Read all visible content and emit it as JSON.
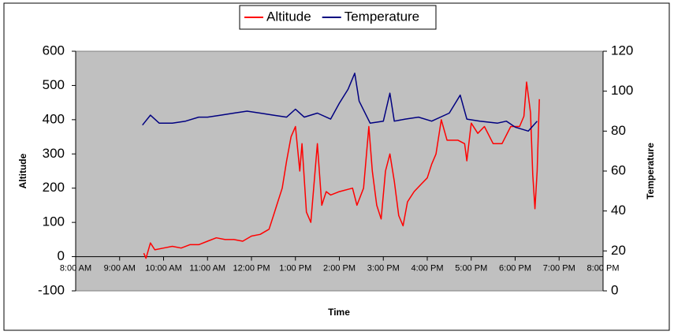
{
  "chart_data": {
    "type": "line",
    "xlabel": "Time",
    "ylabel": "Altitude",
    "y2label": "Temperature",
    "xlim": [
      8,
      20
    ],
    "xticks": [
      {
        "value": 8,
        "label": "8:00 AM"
      },
      {
        "value": 9,
        "label": "9:00 AM"
      },
      {
        "value": 10,
        "label": "10:00 AM"
      },
      {
        "value": 11,
        "label": "11:00 AM"
      },
      {
        "value": 12,
        "label": "12:00 PM"
      },
      {
        "value": 13,
        "label": "1:00 PM"
      },
      {
        "value": 14,
        "label": "2:00 PM"
      },
      {
        "value": 15,
        "label": "3:00 PM"
      },
      {
        "value": 16,
        "label": "4:00 PM"
      },
      {
        "value": 17,
        "label": "5:00 PM"
      },
      {
        "value": 18,
        "label": "6:00 PM"
      },
      {
        "value": 19,
        "label": "7:00 PM"
      },
      {
        "value": 20,
        "label": "8:00 PM"
      }
    ],
    "ylim": [
      -100,
      600
    ],
    "yticks": [
      -100,
      0,
      100,
      200,
      300,
      400,
      500,
      600
    ],
    "y2lim": [
      0,
      120
    ],
    "y2ticks": [
      0,
      20,
      40,
      60,
      80,
      100,
      120
    ],
    "legend": "top",
    "background": "#c0c0c0",
    "series": [
      {
        "name": "Altitude",
        "color": "#ff0000",
        "x": [
          9.55,
          9.6,
          9.7,
          9.8,
          10.0,
          10.2,
          10.4,
          10.6,
          10.8,
          11.0,
          11.2,
          11.4,
          11.6,
          11.8,
          12.0,
          12.2,
          12.4,
          12.5,
          12.6,
          12.7,
          12.8,
          12.9,
          13.0,
          13.1,
          13.15,
          13.25,
          13.35,
          13.5,
          13.6,
          13.7,
          13.8,
          14.0,
          14.3,
          14.4,
          14.55,
          14.67,
          14.75,
          14.85,
          14.95,
          15.05,
          15.15,
          15.25,
          15.35,
          15.45,
          15.55,
          15.7,
          15.85,
          16.0,
          16.1,
          16.2,
          16.32,
          16.45,
          16.7,
          16.85,
          16.9,
          17.0,
          17.15,
          17.3,
          17.5,
          17.7,
          17.9,
          18.1,
          18.2,
          18.26,
          18.35,
          18.4,
          18.45,
          18.5,
          18.55
        ],
        "values": [
          10,
          -5,
          40,
          20,
          25,
          30,
          25,
          35,
          35,
          45,
          55,
          50,
          50,
          45,
          60,
          65,
          80,
          120,
          160,
          200,
          280,
          350,
          380,
          250,
          330,
          130,
          100,
          330,
          150,
          190,
          180,
          190,
          200,
          150,
          200,
          380,
          250,
          150,
          110,
          250,
          300,
          220,
          120,
          90,
          160,
          190,
          210,
          230,
          270,
          300,
          400,
          340,
          340,
          330,
          280,
          390,
          360,
          380,
          330,
          330,
          380,
          380,
          410,
          510,
          420,
          240,
          140,
          250,
          460
        ]
      },
      {
        "name": "Temperature",
        "color": "#000080",
        "axis": "y2",
        "x": [
          9.52,
          9.7,
          9.9,
          10.2,
          10.5,
          10.8,
          11.0,
          11.3,
          11.6,
          11.9,
          12.2,
          12.5,
          12.8,
          13.0,
          13.2,
          13.5,
          13.8,
          14.0,
          14.2,
          14.35,
          14.45,
          14.7,
          15.0,
          15.15,
          15.25,
          15.5,
          15.8,
          16.1,
          16.5,
          16.75,
          16.9,
          17.2,
          17.6,
          17.8,
          18.0,
          18.3,
          18.5
        ],
        "values": [
          83,
          88,
          84,
          84,
          85,
          87,
          87,
          88,
          89,
          90,
          89,
          88,
          87,
          91,
          87,
          89,
          86,
          94,
          101,
          109,
          95,
          84,
          85,
          99,
          85,
          86,
          87,
          85,
          89,
          98,
          86,
          85,
          84,
          85,
          82,
          80,
          85
        ]
      }
    ]
  }
}
